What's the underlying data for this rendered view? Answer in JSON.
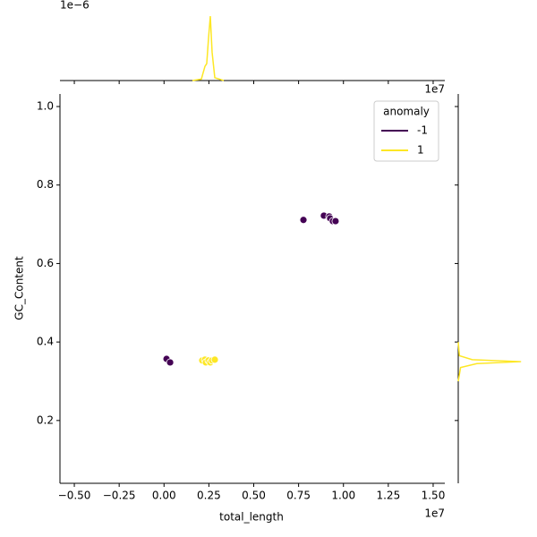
{
  "chart_data": {
    "type": "scatter",
    "x_label": "total_length",
    "y_label": "GC_Content",
    "x_offset_label": "1e7",
    "xlim": [
      -0.58,
      1.565
    ],
    "ylim": [
      0.04,
      1.032
    ],
    "xticks": [
      {
        "value": -0.5,
        "label": "−0.50"
      },
      {
        "value": -0.25,
        "label": "−0.25"
      },
      {
        "value": 0,
        "label": "0.00"
      },
      {
        "value": 0.25,
        "label": "0.25"
      },
      {
        "value": 0.5,
        "label": "0.50"
      },
      {
        "value": 0.75,
        "label": "0.75"
      },
      {
        "value": 1,
        "label": "1.00"
      },
      {
        "value": 1.25,
        "label": "1.25"
      },
      {
        "value": 1.5,
        "label": "1.50"
      }
    ],
    "yticks": [
      0.2,
      0.4,
      0.6,
      0.8,
      {
        "value": 1,
        "label": "1.0"
      }
    ],
    "legend_title": "anomaly",
    "legend": "upper right",
    "series": [
      {
        "name": "-1",
        "color": "#440154",
        "x": [
          0.014,
          0.034,
          0.777,
          0.891,
          0.921,
          0.926,
          0.941,
          0.956
        ],
        "values": [
          0.357,
          0.348,
          0.711,
          0.722,
          0.72,
          0.715,
          0.708,
          0.708
        ]
      },
      {
        "name": "1",
        "color": "#fde725",
        "x": [
          0.213,
          0.228,
          0.233,
          0.248,
          0.258,
          0.268,
          0.283
        ],
        "values": [
          0.353,
          0.355,
          0.348,
          0.353,
          0.348,
          0.353,
          0.355
        ]
      }
    ],
    "marginal_top": {
      "y_offset_label": "1e−6",
      "ylim": [
        0,
        2.6
      ],
      "color": "#fde725",
      "x": [
        0.158,
        0.208,
        0.228,
        0.238,
        0.248,
        0.258,
        0.268,
        0.283,
        0.333
      ],
      "values": [
        0,
        0.05,
        0.5,
        0.6,
        1.5,
        2.28,
        1.0,
        0.1,
        0
      ]
    },
    "marginal_right": {
      "xlim": [
        0,
        30
      ],
      "color": "#fde725",
      "y": [
        0.3,
        0.335,
        0.345,
        0.35,
        0.355,
        0.365,
        0.4
      ],
      "values": [
        0,
        1,
        8,
        27,
        6,
        0.5,
        0
      ]
    }
  }
}
